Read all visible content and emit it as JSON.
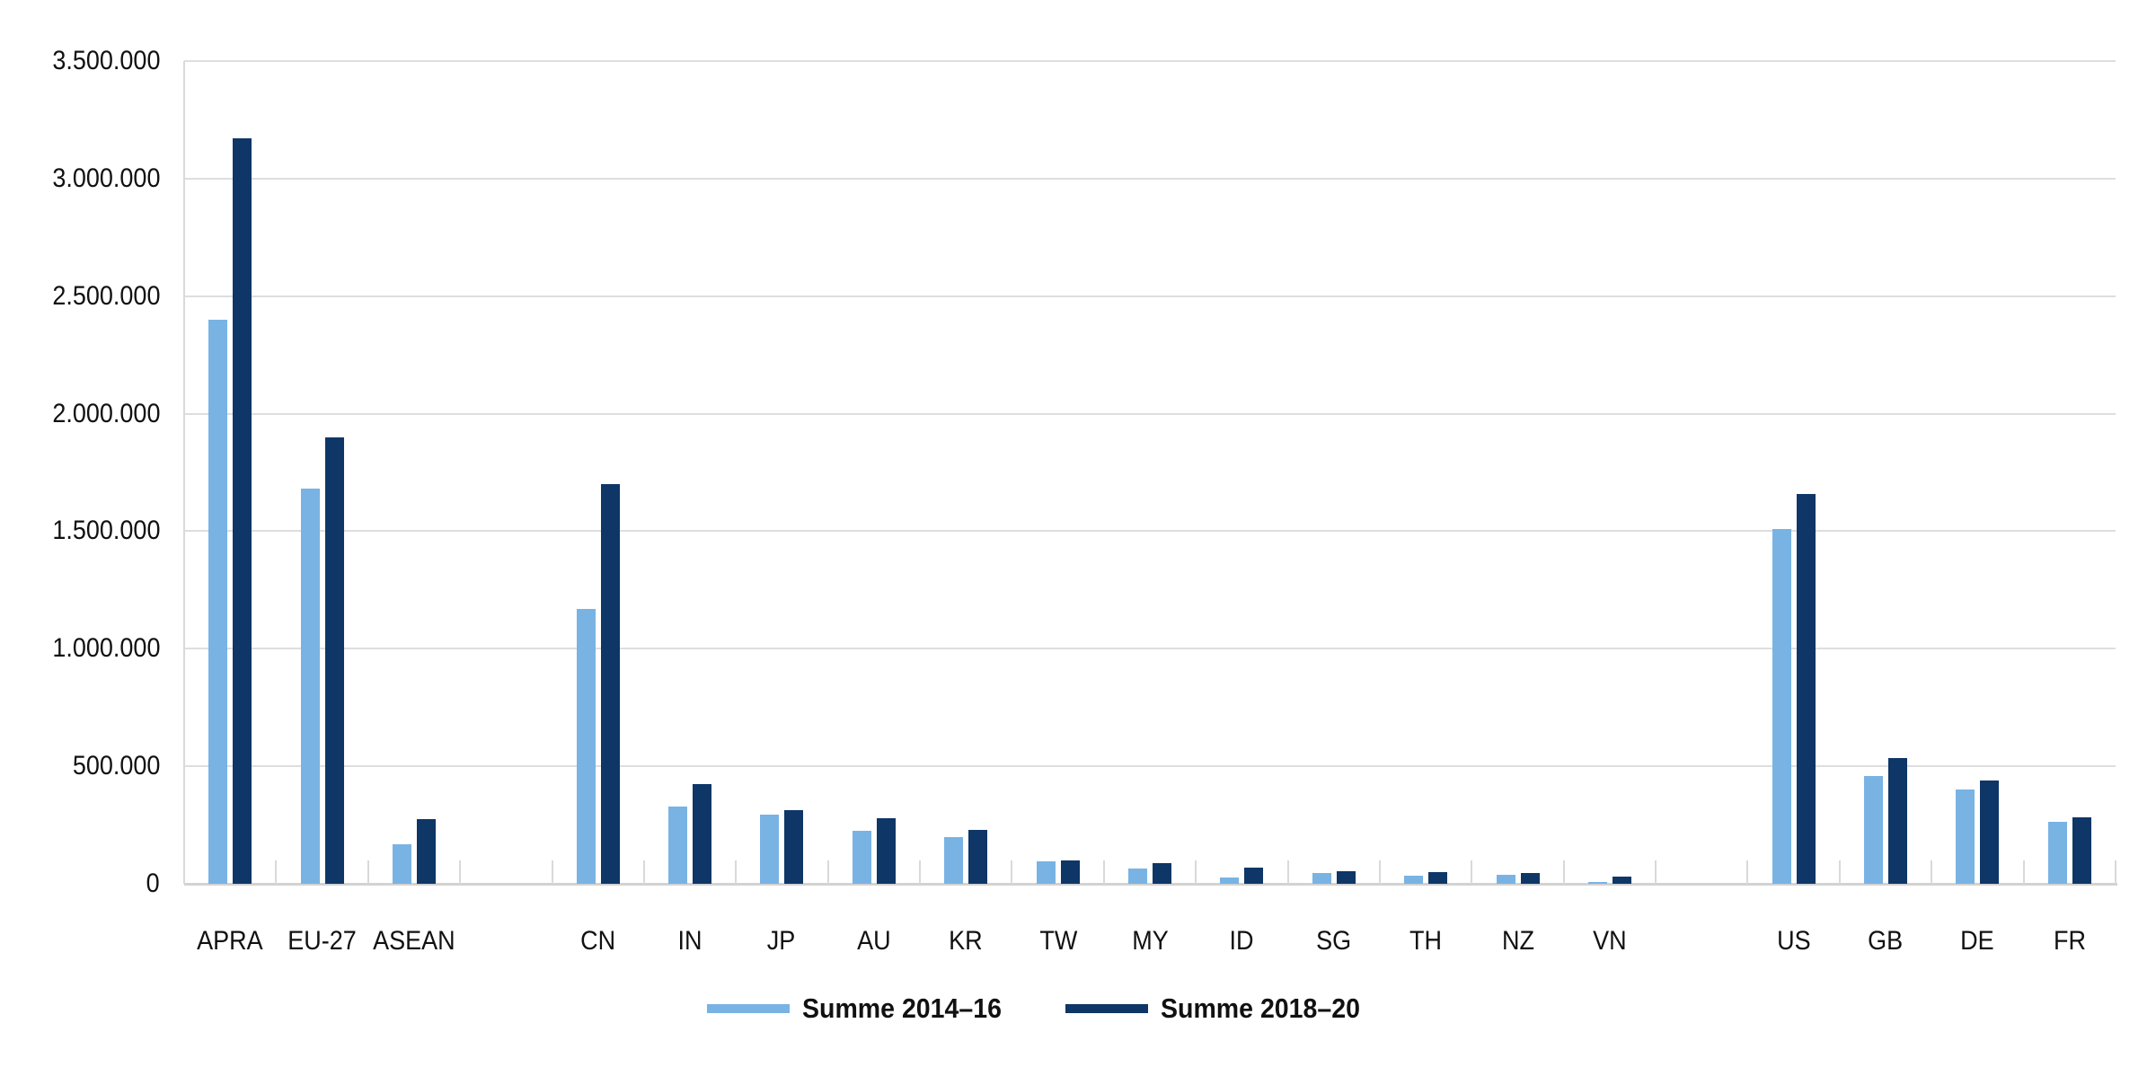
{
  "chart_data": {
    "type": "bar",
    "title": "",
    "categories": [
      "APRA",
      "EU-27",
      "ASEAN",
      "",
      "CN",
      "IN",
      "JP",
      "AU",
      "KR",
      "TW",
      "MY",
      "ID",
      "SG",
      "TH",
      "NZ",
      "VN",
      "",
      "US",
      "GB",
      "DE",
      "FR"
    ],
    "series": [
      {
        "name": "Summe 2014–16",
        "color": "#79B3E4",
        "values": [
          2400000,
          1680000,
          170000,
          null,
          1170000,
          330000,
          295000,
          225000,
          200000,
          95000,
          65000,
          28000,
          44000,
          34000,
          38000,
          6000,
          null,
          1510000,
          458000,
          400000,
          265000
        ]
      },
      {
        "name": "Summe 2018–20",
        "color": "#0E3667",
        "values": [
          3170000,
          1900000,
          275000,
          null,
          1700000,
          425000,
          315000,
          280000,
          230000,
          98000,
          88000,
          67000,
          55000,
          48000,
          45000,
          29000,
          null,
          1660000,
          535000,
          440000,
          283000
        ]
      }
    ],
    "ylim": [
      0,
      3500000
    ],
    "ytick_step": 500000,
    "ytick_labels": [
      "0",
      "500.000",
      "1.000.000",
      "1.500.000",
      "2.000.000",
      "2.500.000",
      "3.000.000",
      "3.500.000"
    ],
    "xlabel": "",
    "ylabel": "",
    "grid": true,
    "legend_position": "bottom",
    "tick_marks": "between-category-groups"
  },
  "colors": {
    "background": "#FFFFFF",
    "gridline": "#DEDEDE",
    "axis_line": "#D2D2D2",
    "tick_mark": "#D9D9D9",
    "text": "#111111",
    "series_light": "#79B3E4",
    "series_dark": "#0E3667"
  }
}
